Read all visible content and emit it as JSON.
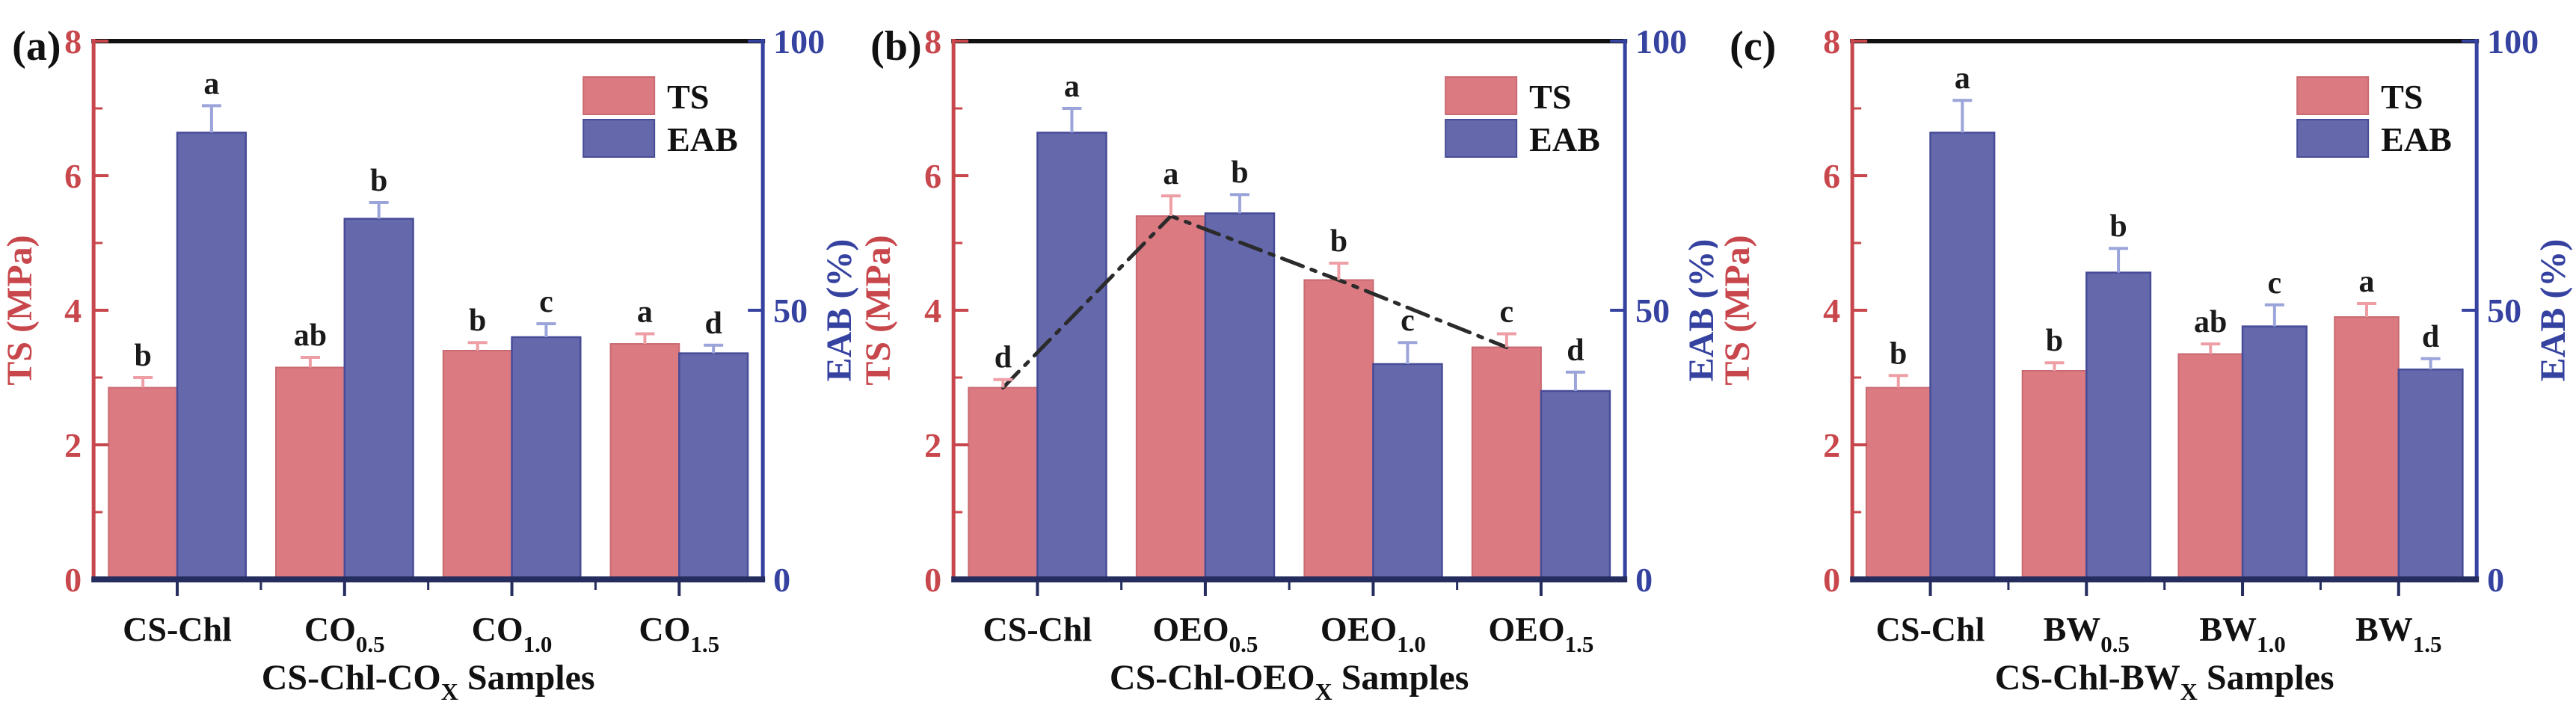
{
  "figure": {
    "description": "Mechanical properties (TS and EAB) of CS-Chl composite films",
    "colors": {
      "ts_bar": "#DC7A81",
      "ts_bar_edge": "#C96A72",
      "eab_bar": "#6568AB",
      "eab_bar_edge": "#474C97",
      "left_axis": "#C8474C",
      "right_axis": "#3642A0",
      "top_axis": "#111111",
      "bottom_axis": "#252C5E",
      "ts_error": "#EE9FA5",
      "eab_error": "#9CA5DA",
      "letter": "#1A1A1A",
      "legend_text": "#111111",
      "trend_line": "#2B2B2B",
      "background": "#FFFFFF"
    },
    "legend": {
      "items": [
        {
          "label": "TS",
          "color_key": "ts_bar",
          "edge_key": "ts_bar_edge"
        },
        {
          "label": "EAB",
          "color_key": "eab_bar",
          "edge_key": "eab_bar_edge"
        }
      ]
    }
  },
  "chart_data": [
    {
      "panel": "(a)",
      "type": "bar",
      "categories": [
        {
          "text": "CS-Chl",
          "sub": ""
        },
        {
          "text": "CO",
          "sub": "0.5"
        },
        {
          "text": "CO",
          "sub": "1.0"
        },
        {
          "text": "CO",
          "sub": "1.5"
        }
      ],
      "xlabel": {
        "text": "CS-Chl-CO",
        "sub": "X",
        "suffix": " Samples"
      },
      "left_axis": {
        "label": "TS (MPa)",
        "min": 0,
        "max": 8,
        "major_ticks": [
          0,
          2,
          4,
          6,
          8
        ],
        "minor_ticks": [
          1,
          3,
          5,
          7
        ]
      },
      "right_axis": {
        "label": "EAB (%)",
        "min": 0,
        "max": 100,
        "major_ticks": [
          0,
          50,
          100
        ],
        "minor_ticks": []
      },
      "series": [
        {
          "name": "TS",
          "axis": "left",
          "values": [
            2.85,
            3.15,
            3.4,
            3.5
          ],
          "errors": [
            0.15,
            0.15,
            0.12,
            0.15
          ],
          "letters": [
            "b",
            "ab",
            "b",
            "a"
          ]
        },
        {
          "name": "EAB",
          "axis": "right",
          "values": [
            83,
            67,
            45,
            42
          ],
          "errors": [
            5,
            3,
            2.5,
            1.5
          ],
          "letters": [
            "a",
            "b",
            "c",
            "d"
          ]
        }
      ],
      "trend_line": null,
      "grid": false,
      "legend_position": "upper-right-inside"
    },
    {
      "panel": "(b)",
      "type": "bar",
      "categories": [
        {
          "text": "CS-Chl",
          "sub": ""
        },
        {
          "text": "OEO",
          "sub": "0.5"
        },
        {
          "text": "OEO",
          "sub": "1.0"
        },
        {
          "text": "OEO",
          "sub": "1.5"
        }
      ],
      "xlabel": {
        "text": "CS-Chl-OEO",
        "sub": "X",
        "suffix": " Samples"
      },
      "left_axis": {
        "label": "TS (MPa)",
        "min": 0,
        "max": 8,
        "major_ticks": [
          0,
          2,
          4,
          6,
          8
        ],
        "minor_ticks": [
          1,
          3,
          5,
          7
        ]
      },
      "right_axis": {
        "label": "EAB (%)",
        "min": 0,
        "max": 100,
        "major_ticks": [
          0,
          50,
          100
        ],
        "minor_ticks": []
      },
      "series": [
        {
          "name": "TS",
          "axis": "left",
          "values": [
            2.85,
            5.4,
            4.45,
            3.45
          ],
          "errors": [
            0.12,
            0.3,
            0.25,
            0.2
          ],
          "letters": [
            "d",
            "a",
            "b",
            "c"
          ]
        },
        {
          "name": "EAB",
          "axis": "right",
          "values": [
            83,
            68,
            40,
            35
          ],
          "errors": [
            4.5,
            3.5,
            4,
            3.5
          ],
          "letters": [
            "a",
            "b",
            "c",
            "d"
          ]
        }
      ],
      "trend_line": {
        "series": "TS",
        "style": "dash-dot",
        "color_key": "trend_line"
      },
      "grid": false,
      "legend_position": "upper-right-inside"
    },
    {
      "panel": "(c)",
      "type": "bar",
      "categories": [
        {
          "text": "CS-Chl",
          "sub": ""
        },
        {
          "text": "BW",
          "sub": "0.5"
        },
        {
          "text": "BW",
          "sub": "1.0"
        },
        {
          "text": "BW",
          "sub": "1.5"
        }
      ],
      "xlabel": {
        "text": "CS-Chl-BW",
        "sub": "X",
        "suffix": " Samples"
      },
      "left_axis": {
        "label": "TS (MPa)",
        "min": 0,
        "max": 8,
        "major_ticks": [
          0,
          2,
          4,
          6,
          8
        ],
        "minor_ticks": [
          1,
          3,
          5,
          7
        ]
      },
      "right_axis": {
        "label": "EAB (%)",
        "min": 0,
        "max": 100,
        "major_ticks": [
          0,
          50,
          100
        ],
        "minor_ticks": []
      },
      "series": [
        {
          "name": "TS",
          "axis": "left",
          "values": [
            2.85,
            3.1,
            3.35,
            3.9
          ],
          "errors": [
            0.18,
            0.12,
            0.15,
            0.2
          ],
          "letters": [
            "b",
            "b",
            "ab",
            "a"
          ]
        },
        {
          "name": "EAB",
          "axis": "right",
          "values": [
            83,
            57,
            47,
            39
          ],
          "errors": [
            6,
            4.5,
            4,
            2
          ],
          "letters": [
            "a",
            "b",
            "c",
            "d"
          ]
        }
      ],
      "trend_line": null,
      "grid": false,
      "legend_position": "upper-right-inside"
    }
  ]
}
